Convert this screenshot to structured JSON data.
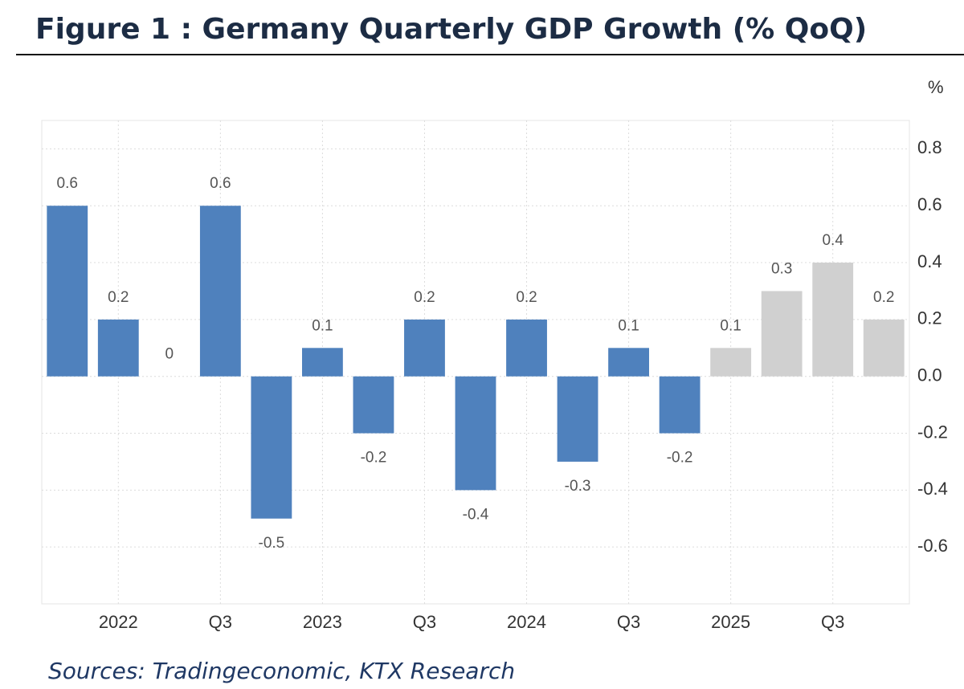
{
  "chart_data": {
    "type": "bar",
    "title": "Figure 1 : Germany Quarterly GDP Growth (% QoQ)",
    "y_unit": "%",
    "source": "Sources: Tradingeconomic, KTX Research",
    "categories": [
      null,
      "2022",
      null,
      "Q3",
      null,
      "2023",
      null,
      "Q3",
      null,
      "2024",
      null,
      "Q3",
      null,
      "2025",
      null,
      "Q3",
      null
    ],
    "values": [
      0.6,
      0.2,
      0,
      0.6,
      -0.5,
      0.1,
      -0.2,
      0.2,
      -0.4,
      0.2,
      -0.3,
      0.1,
      -0.2,
      0.1,
      0.3,
      0.4,
      0.2
    ],
    "colors": [
      "#4f81bd",
      "#4f81bd",
      "#4f81bd",
      "#4f81bd",
      "#4f81bd",
      "#4f81bd",
      "#4f81bd",
      "#4f81bd",
      "#4f81bd",
      "#4f81bd",
      "#4f81bd",
      "#4f81bd",
      "#4f81bd",
      "#d0d0d0",
      "#d0d0d0",
      "#d0d0d0",
      "#d0d0d0"
    ],
    "ylim": [
      -0.8,
      0.9
    ],
    "yticks": [
      -0.6,
      -0.4,
      -0.2,
      {
        "value": 0,
        "label": "0.0"
      },
      0.2,
      0.4,
      0.6,
      0.8
    ],
    "grid": true
  }
}
